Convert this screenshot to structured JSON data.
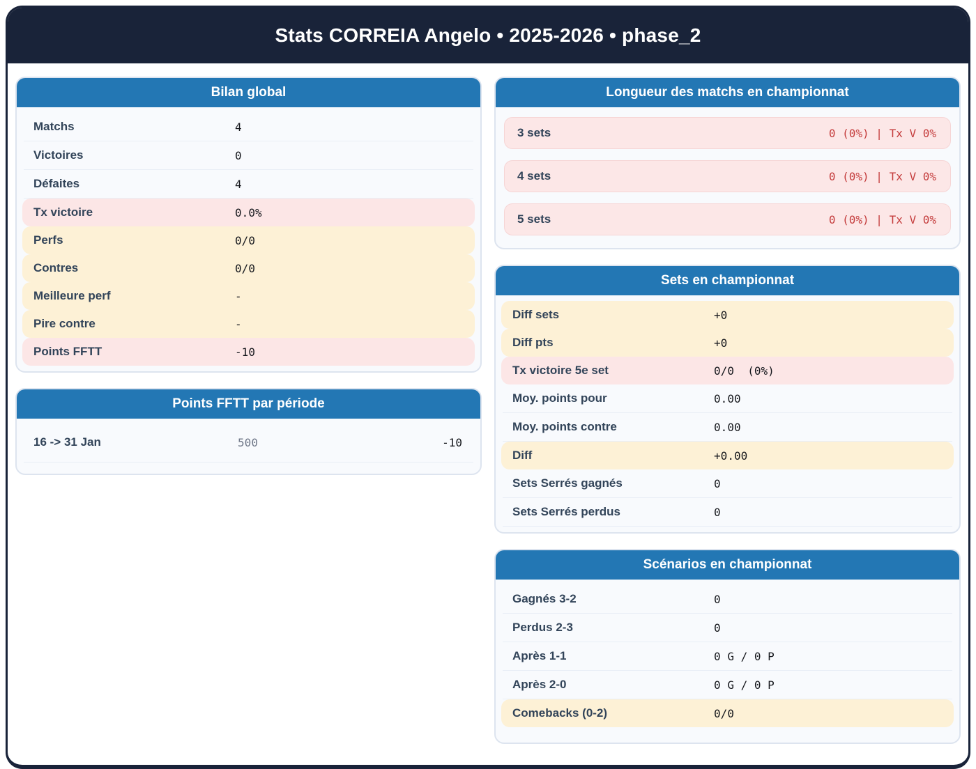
{
  "header": {
    "title": "Stats CORREIA Angelo • 2025-2026 • phase_2"
  },
  "colors": {
    "navy": "#192339",
    "accent_blue": "#2377b4",
    "alert_red_text": "#c43c3c",
    "pink_row_bg": "#fce6e6",
    "yellow_row_bg": "#fdf1d6",
    "label_color": "#324459"
  },
  "cards": {
    "bilan": {
      "title": "Bilan global",
      "rows": [
        {
          "label": "Matchs",
          "value": "4"
        },
        {
          "label": "Victoires",
          "value": "0"
        },
        {
          "label": "Défaites",
          "value": "4"
        },
        {
          "label": "Tx victoire",
          "value": "0.0%"
        },
        {
          "label": "Perfs",
          "value": "0/0"
        },
        {
          "label": "Contres",
          "value": "0/0"
        },
        {
          "label": "Meilleure perf",
          "value": "-"
        },
        {
          "label": "Pire contre",
          "value": "-"
        },
        {
          "label": "Points FFTT",
          "value": "-10"
        }
      ]
    },
    "points_periode": {
      "title": "Points FFTT par période",
      "rows": [
        {
          "label": "16 -> 31 Jan",
          "mid": "500",
          "value": "-10"
        }
      ]
    },
    "longueur": {
      "title": "Longueur des matchs en championnat",
      "rows": [
        {
          "label": "3 sets",
          "value": "0 (0%) | Tx V 0%"
        },
        {
          "label": "4 sets",
          "value": "0 (0%) | Tx V 0%"
        },
        {
          "label": "5 sets",
          "value": "0 (0%) | Tx V 0%"
        }
      ]
    },
    "sets": {
      "title": "Sets en championnat",
      "rows": [
        {
          "label": "Diff sets",
          "value": "+0"
        },
        {
          "label": "Diff pts",
          "value": "+0"
        },
        {
          "label": "Tx victoire 5e set",
          "value": "0/0  (0%)"
        },
        {
          "label": "Moy. points pour",
          "value": "0.00"
        },
        {
          "label": "Moy. points contre",
          "value": "0.00"
        },
        {
          "label": "Diff",
          "value": "+0.00"
        },
        {
          "label": "Sets Serrés gagnés",
          "value": "0"
        },
        {
          "label": "Sets Serrés perdus",
          "value": "0"
        }
      ]
    },
    "scenarios": {
      "title": "Scénarios en championnat",
      "rows": [
        {
          "label": "Gagnés 3-2",
          "value": "0"
        },
        {
          "label": "Perdus 2-3",
          "value": "0"
        },
        {
          "label": "Après 1-1",
          "value": "0 G / 0 P"
        },
        {
          "label": "Après 2-0",
          "value": "0 G / 0 P"
        },
        {
          "label": "Comebacks (0-2)",
          "value": "0/0"
        }
      ]
    }
  }
}
